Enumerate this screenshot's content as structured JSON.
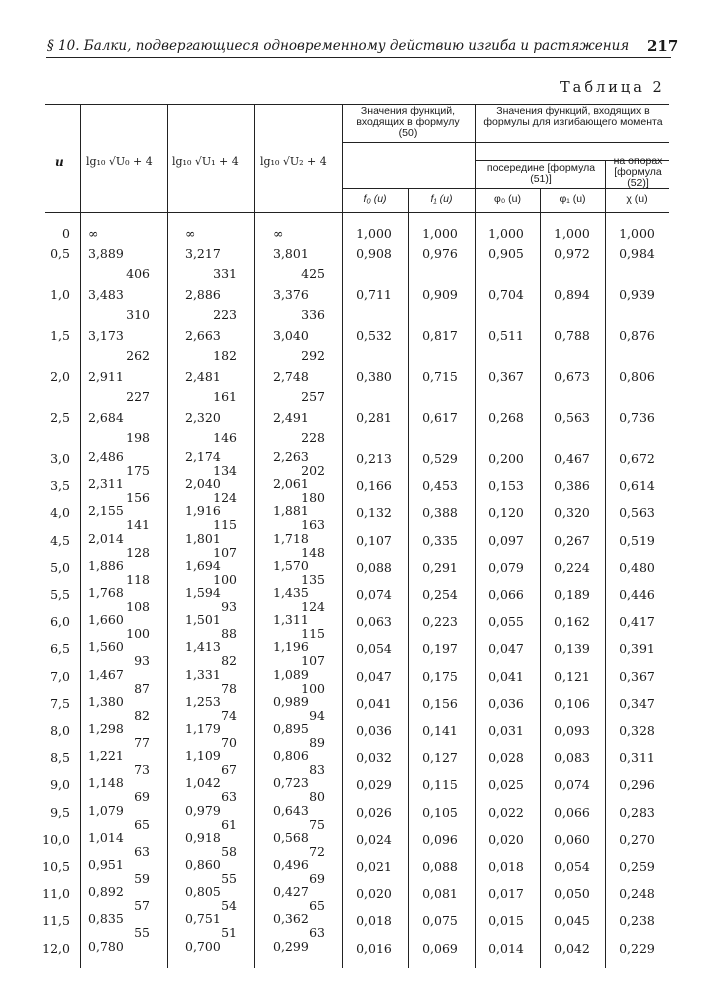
{
  "running_head": "§ 10. Балки, подвергающиеся одновременному действию изгиба и растяжения",
  "page_number": "217",
  "table_title": "Таблица 2",
  "headers": {
    "u": "u",
    "lg0": "lg₁₀ √U₀ + 4",
    "lg1": "lg₁₀ √U₁ + 4",
    "lg2": "lg₁₀ √U₂ + 4",
    "group50": "Значения функций, входящих в формулу (50)",
    "group_moment": "Значения функций, входящих в формулы для изгибающего момента",
    "middle": "посередине [формула (51)]",
    "supports": "на опорах [формула (52)]",
    "f0": "f₀ (u)",
    "f1": "f₁ (u)",
    "phi0": "φ₀ (u)",
    "phi1": "φ₁ (u)",
    "chi": "χ (u)"
  },
  "rows": [
    [
      "0",
      "∞",
      "∞",
      "∞",
      "1,000",
      "1,000",
      "1,000",
      "1,000",
      "1,000"
    ],
    [
      "0,5",
      "3,889",
      "3,217",
      "3,801",
      "0,908",
      "0,976",
      "0,905",
      "0,972",
      "0,984"
    ],
    [
      "1,0",
      "3,483",
      "2,886",
      "3,376",
      "0,711",
      "0,909",
      "0,704",
      "0,894",
      "0,939"
    ],
    [
      "1,5",
      "3,173",
      "2,663",
      "3,040",
      "0,532",
      "0,817",
      "0,511",
      "0,788",
      "0,876"
    ],
    [
      "2,0",
      "2,911",
      "2,481",
      "2,748",
      "0,380",
      "0,715",
      "0,367",
      "0,673",
      "0,806"
    ],
    [
      "2,5",
      "2,684",
      "2,320",
      "2,491",
      "0,281",
      "0,617",
      "0,268",
      "0,563",
      "0,736"
    ],
    [
      "3,0",
      "2,486",
      "2,174",
      "2,263",
      "0,213",
      "0,529",
      "0,200",
      "0,467",
      "0,672"
    ],
    [
      "3,5",
      "2,311",
      "2,040",
      "2,061",
      "0,166",
      "0,453",
      "0,153",
      "0,386",
      "0,614"
    ],
    [
      "4,0",
      "2,155",
      "1,916",
      "1,881",
      "0,132",
      "0,388",
      "0,120",
      "0,320",
      "0,563"
    ],
    [
      "4,5",
      "2,014",
      "1,801",
      "1,718",
      "0,107",
      "0,335",
      "0,097",
      "0,267",
      "0,519"
    ],
    [
      "5,0",
      "1,886",
      "1,694",
      "1,570",
      "0,088",
      "0,291",
      "0,079",
      "0,224",
      "0,480"
    ],
    [
      "5,5",
      "1,768",
      "1,594",
      "1,435",
      "0,074",
      "0,254",
      "0,066",
      "0,189",
      "0,446"
    ],
    [
      "6,0",
      "1,660",
      "1,501",
      "1,311",
      "0,063",
      "0,223",
      "0,055",
      "0,162",
      "0,417"
    ],
    [
      "6,5",
      "1,560",
      "1,413",
      "1,196",
      "0,054",
      "0,197",
      "0,047",
      "0,139",
      "0,391"
    ],
    [
      "7,0",
      "1,467",
      "1,331",
      "1,089",
      "0,047",
      "0,175",
      "0,041",
      "0,121",
      "0,367"
    ],
    [
      "7,5",
      "1,380",
      "1,253",
      "0,989",
      "0,041",
      "0,156",
      "0,036",
      "0,106",
      "0,347"
    ],
    [
      "8,0",
      "1,298",
      "1,179",
      "0,895",
      "0,036",
      "0,141",
      "0,031",
      "0,093",
      "0,328"
    ],
    [
      "8,5",
      "1,221",
      "1,109",
      "0,806",
      "0,032",
      "0,127",
      "0,028",
      "0,083",
      "0,311"
    ],
    [
      "9,0",
      "1,148",
      "1,042",
      "0,723",
      "0,029",
      "0,115",
      "0,025",
      "0,074",
      "0,296"
    ],
    [
      "9,5",
      "1,079",
      "0,979",
      "0,643",
      "0,026",
      "0,105",
      "0,022",
      "0,066",
      "0,283"
    ],
    [
      "10,0",
      "1,014",
      "0,918",
      "0,568",
      "0,024",
      "0,096",
      "0,020",
      "0,060",
      "0,270"
    ],
    [
      "10,5",
      "0,951",
      "0,860",
      "0,496",
      "0,021",
      "0,088",
      "0,018",
      "0,054",
      "0,259"
    ],
    [
      "11,0",
      "0,892",
      "0,805",
      "0,427",
      "0,020",
      "0,081",
      "0,017",
      "0,050",
      "0,248"
    ],
    [
      "11,5",
      "0,835",
      "0,751",
      "0,362",
      "0,018",
      "0,075",
      "0,015",
      "0,045",
      "0,238"
    ],
    [
      "12,0",
      "0,780",
      "0,700",
      "0,299",
      "0,016",
      "0,069",
      "0,014",
      "0,042",
      "0,229"
    ]
  ],
  "differences": {
    "lg0": [
      "406",
      "310",
      "262",
      "227",
      "198",
      "175",
      "156",
      "141",
      "128",
      "118",
      "108",
      "100",
      "93",
      "87",
      "82",
      "77",
      "73",
      "69",
      "65",
      "63",
      "59",
      "57",
      "55"
    ],
    "lg1": [
      "331",
      "223",
      "182",
      "161",
      "146",
      "134",
      "124",
      "115",
      "107",
      "100",
      "93",
      "88",
      "82",
      "78",
      "74",
      "70",
      "67",
      "63",
      "61",
      "58",
      "55",
      "54",
      "51"
    ],
    "lg2": [
      "425",
      "336",
      "292",
      "257",
      "228",
      "202",
      "180",
      "163",
      "148",
      "135",
      "124",
      "115",
      "107",
      "100",
      "94",
      "89",
      "83",
      "80",
      "75",
      "72",
      "69",
      "65",
      "63"
    ]
  }
}
